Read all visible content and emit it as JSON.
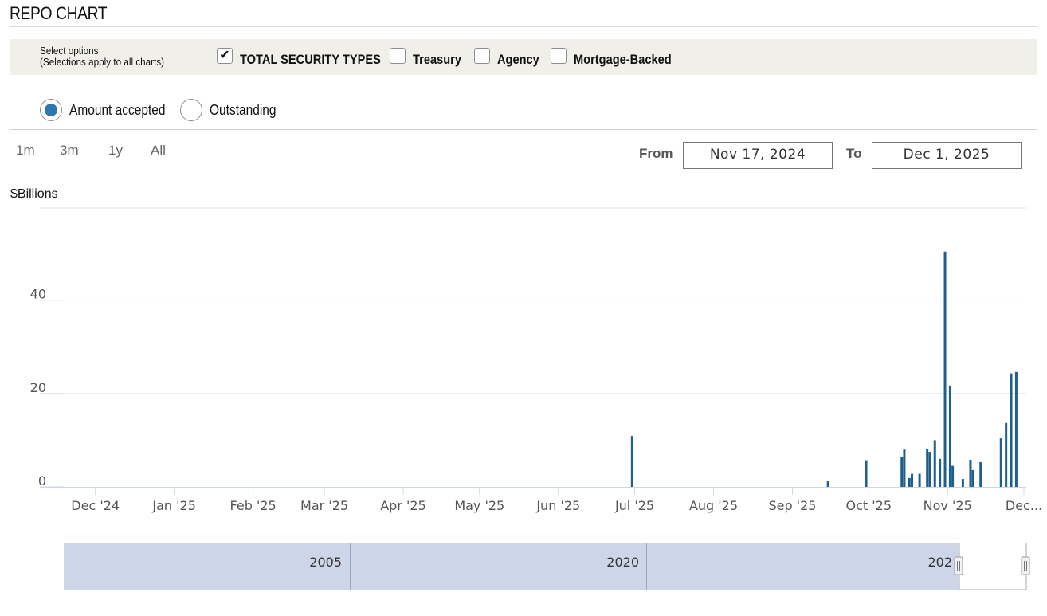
{
  "title": "REPO CHART",
  "options": {
    "label_line1": "Select options",
    "label_line2": "(Selections apply to all charts)",
    "checkboxes": [
      {
        "label": "TOTAL SECURITY TYPES",
        "checked": true
      },
      {
        "label": "Treasury",
        "checked": false
      },
      {
        "label": "Agency",
        "checked": false
      },
      {
        "label": "Mortgage-Backed",
        "checked": false
      }
    ]
  },
  "radios": [
    {
      "label": "Amount accepted",
      "selected": true
    },
    {
      "label": "Outstanding",
      "selected": false
    }
  ],
  "range_buttons": [
    "1m",
    "3m",
    "1y",
    "All"
  ],
  "date_range": {
    "from_label": "From",
    "from_value": "Nov 17, 2024",
    "to_label": "To",
    "to_value": "Dec 1, 2025"
  },
  "unit_label": "$Billions",
  "colors": {
    "bar": "#1f5f8b",
    "navigator_fill": "#ccd6e8",
    "grid": "#e0e0e0"
  },
  "chart_data": {
    "type": "bar",
    "x_range": [
      "2024-11-17",
      "2025-12-01"
    ],
    "ylim": [
      0,
      60
    ],
    "yticks": [
      0,
      20,
      40
    ],
    "ylabel": "$Billions",
    "xticks": [
      {
        "date": "2024-12-01",
        "label": "Dec '24"
      },
      {
        "date": "2025-01-01",
        "label": "Jan '25"
      },
      {
        "date": "2025-02-01",
        "label": "Feb '25"
      },
      {
        "date": "2025-03-01",
        "label": "Mar '25"
      },
      {
        "date": "2025-04-01",
        "label": "Apr '25"
      },
      {
        "date": "2025-05-01",
        "label": "May '25"
      },
      {
        "date": "2025-06-01",
        "label": "Jun '25"
      },
      {
        "date": "2025-07-01",
        "label": "Jul '25"
      },
      {
        "date": "2025-08-01",
        "label": "Aug '25"
      },
      {
        "date": "2025-09-01",
        "label": "Sep '25"
      },
      {
        "date": "2025-10-01",
        "label": "Oct '25"
      },
      {
        "date": "2025-11-01",
        "label": "Nov '25"
      },
      {
        "date": "2025-12-01",
        "label": "Dec..."
      }
    ],
    "bars": [
      {
        "date": "2025-06-30",
        "value": 10.9
      },
      {
        "date": "2025-09-15",
        "value": 1.2
      },
      {
        "date": "2025-09-30",
        "value": 5.7
      },
      {
        "date": "2025-10-14",
        "value": 6.5
      },
      {
        "date": "2025-10-15",
        "value": 8.0
      },
      {
        "date": "2025-10-17",
        "value": 1.9
      },
      {
        "date": "2025-10-18",
        "value": 2.8
      },
      {
        "date": "2025-10-21",
        "value": 2.8
      },
      {
        "date": "2025-10-24",
        "value": 8.2
      },
      {
        "date": "2025-10-25",
        "value": 7.5
      },
      {
        "date": "2025-10-27",
        "value": 10.0
      },
      {
        "date": "2025-10-29",
        "value": 6.0
      },
      {
        "date": "2025-10-31",
        "value": 50.4
      },
      {
        "date": "2025-11-02",
        "value": 21.7
      },
      {
        "date": "2025-11-03",
        "value": 4.5
      },
      {
        "date": "2025-11-07",
        "value": 1.7
      },
      {
        "date": "2025-11-10",
        "value": 5.8
      },
      {
        "date": "2025-11-11",
        "value": 3.6
      },
      {
        "date": "2025-11-14",
        "value": 5.3
      },
      {
        "date": "2025-11-22",
        "value": 10.4
      },
      {
        "date": "2025-11-24",
        "value": 13.7
      },
      {
        "date": "2025-11-26",
        "value": 24.3
      },
      {
        "date": "2025-11-28",
        "value": 24.6
      }
    ],
    "navigator": {
      "labels": [
        "2005",
        "2020",
        "202"
      ]
    }
  }
}
